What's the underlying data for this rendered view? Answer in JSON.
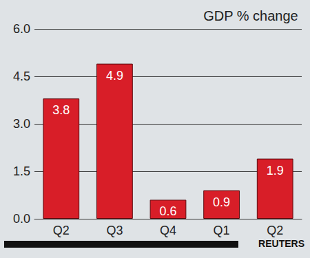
{
  "chart_data": {
    "type": "bar",
    "title": "GDP % change",
    "categories": [
      "Q2",
      "Q3",
      "Q4",
      "Q1",
      "Q2"
    ],
    "values": [
      3.8,
      4.9,
      0.6,
      0.9,
      1.9
    ],
    "color": "#d81e28",
    "ylim": [
      0,
      6
    ],
    "yticks": [
      {
        "value": 0,
        "label": "0.0"
      },
      1.5,
      {
        "value": 3,
        "label": "3.0"
      },
      4.5,
      {
        "value": 6,
        "label": "6.0"
      }
    ],
    "grid": true,
    "data_labels": true,
    "source": "REUTERS"
  }
}
